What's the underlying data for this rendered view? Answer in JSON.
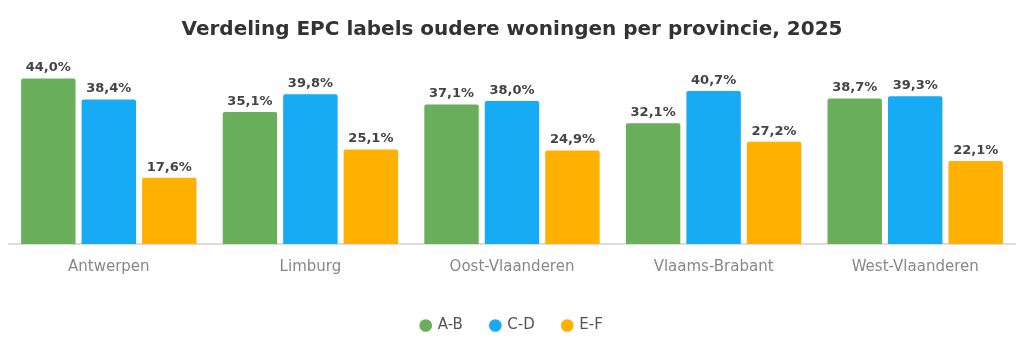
{
  "chart_data": {
    "type": "bar",
    "title": "Verdeling EPC labels oudere woningen per provincie, 2025",
    "categories": [
      "Antwerpen",
      "Limburg",
      "Oost-Vlaanderen",
      "Vlaams-Brabant",
      "West-Vlaanderen"
    ],
    "series": [
      {
        "name": "A-B",
        "color": "#6aaf5c",
        "values": [
          44.0,
          35.1,
          37.1,
          32.1,
          38.7
        ],
        "value_labels": [
          "44,0%",
          "35,1%",
          "37,1%",
          "32,1%",
          "38,7%"
        ]
      },
      {
        "name": "C-D",
        "color": "#17aaf5",
        "values": [
          38.4,
          39.8,
          38.0,
          40.7,
          39.3
        ],
        "value_labels": [
          "38,4%",
          "39,8%",
          "38,0%",
          "40,7%",
          "39,3%"
        ]
      },
      {
        "name": "E-F",
        "color": "#ffb000",
        "values": [
          17.6,
          25.1,
          24.9,
          27.2,
          22.1
        ],
        "value_labels": [
          "17,6%",
          "25,1%",
          "24,9%",
          "27,2%",
          "22,1%"
        ]
      }
    ],
    "grid": false,
    "legend": "bottom",
    "tick_labels": "x"
  }
}
